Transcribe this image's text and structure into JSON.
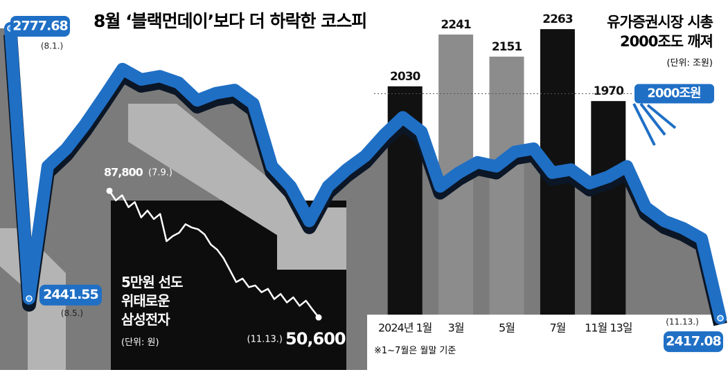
{
  "chart_data": [
    {
      "type": "line",
      "title": "8월 ‘블랙먼데이’보다 더 하락한 코스피",
      "categories": [
        "(8.1.)",
        "(8.5.)",
        null,
        null,
        null,
        null,
        null,
        null,
        null,
        null,
        null,
        null,
        null,
        null,
        null,
        null,
        null,
        null,
        null,
        null,
        null,
        null,
        null,
        null,
        null,
        null,
        null,
        null,
        null,
        null,
        null,
        null,
        null,
        null,
        null,
        null,
        null,
        null,
        "(11.13.)"
      ],
      "values": [
        2777.68,
        2441.55,
        2606,
        2628,
        2658,
        2692,
        2727,
        2714,
        2718,
        2710,
        2688,
        2697,
        2701,
        2684,
        2606,
        2581,
        2538,
        2581,
        2602,
        2619,
        2645,
        2667,
        2649,
        2581,
        2598,
        2611,
        2606,
        2624,
        2628,
        2598,
        2602,
        2585,
        2593,
        2606,
        2555,
        2538,
        2529,
        2516,
        2417.08
      ],
      "color": "#1f6fc5",
      "ylim": [
        2400,
        2800
      ]
    },
    {
      "type": "line",
      "title": "5만원 선도\n위태로운\n삼성전자",
      "unit": "(단위: 원)",
      "categories": [
        "(7.9.)",
        null,
        null,
        null,
        null,
        null,
        null,
        null,
        null,
        null,
        null,
        null,
        null,
        null,
        null,
        null,
        null,
        null,
        null,
        null,
        null,
        null,
        null,
        null,
        null,
        null,
        null,
        null,
        null,
        null,
        null,
        null,
        null,
        "(11.13.)"
      ],
      "values": [
        87800,
        85000,
        86500,
        83000,
        84500,
        80000,
        82000,
        79500,
        81000,
        73000,
        74500,
        75500,
        78000,
        77000,
        76500,
        75000,
        72000,
        70500,
        68000,
        64500,
        61000,
        62000,
        59500,
        60000,
        58000,
        59000,
        56000,
        57500,
        55000,
        56500,
        54000,
        55500,
        53000,
        50600
      ],
      "value_labels": [
        "87,800",
        null,
        null,
        null,
        null,
        null,
        null,
        null,
        null,
        null,
        null,
        null,
        null,
        null,
        null,
        null,
        null,
        null,
        null,
        null,
        null,
        null,
        null,
        null,
        null,
        null,
        null,
        null,
        null,
        null,
        null,
        null,
        null,
        "50,600"
      ],
      "color": "#ffffff",
      "ylim": [
        50000,
        88000
      ]
    },
    {
      "type": "bar",
      "title": "유가증권시장 시총\n2000조도 깨져",
      "unit": "(단위: 조원)",
      "categories": [
        "2024년 1월",
        "3월",
        "5월",
        "7월",
        "11월 13일"
      ],
      "values": [
        2030,
        2241,
        2151,
        2263,
        1970
      ],
      "colors": [
        "#111111",
        "#8c8c8c",
        "#8c8c8c",
        "#111111",
        "#111111"
      ],
      "ylim": [
        1100,
        2300
      ],
      "reference": {
        "value": 2000,
        "label": "2000조원"
      },
      "note": "※1~7월은 월말 기준"
    }
  ]
}
